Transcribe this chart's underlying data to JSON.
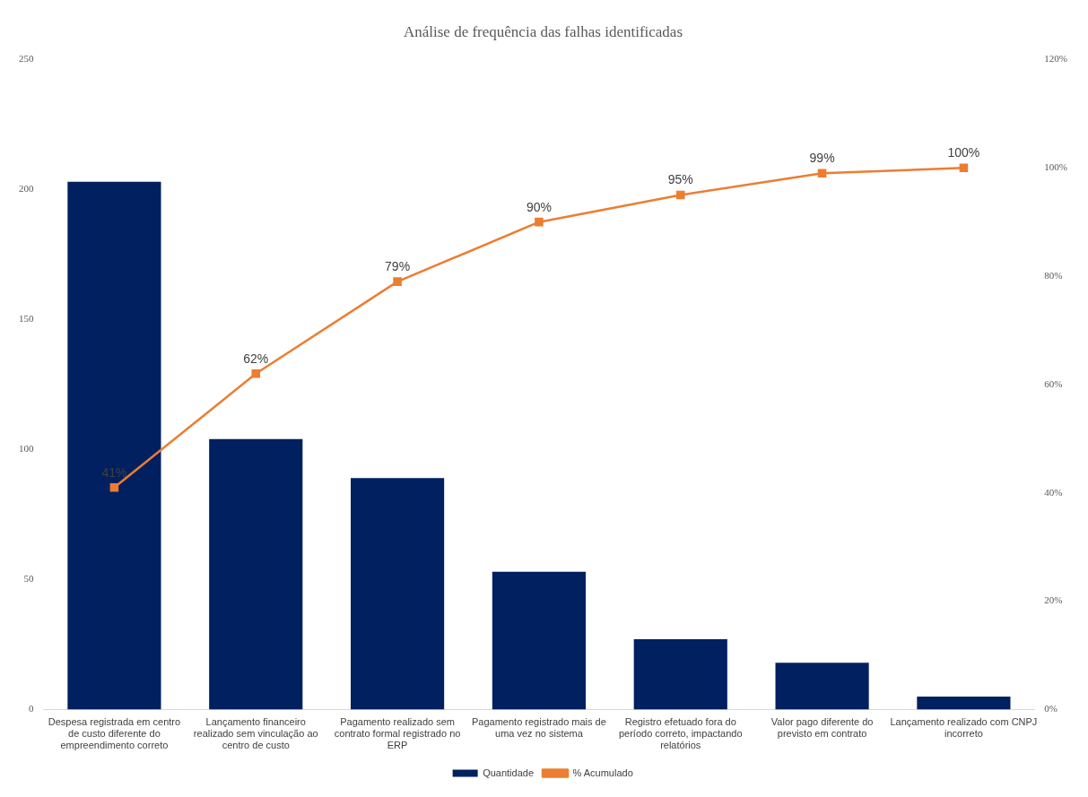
{
  "chart_data": {
    "type": "bar",
    "title": "Análise de frequência das falhas identificadas",
    "categories": [
      "Despesa registrada em centro de custo diferente do empreendimento correto",
      "Lançamento financeiro realizado sem vinculação ao centro de custo",
      "Pagamento realizado sem contrato formal registrado no ERP",
      "Pagamento registrado mais de uma vez no sistema",
      "Registro efetuado fora do período correto, impactando relatórios",
      "Valor pago diferente do previsto em contrato",
      "Lançamento realizado com CNPJ incorreto"
    ],
    "series": [
      {
        "name": "Quantidade",
        "color": "#002060",
        "values": [
          203,
          104,
          89,
          53,
          27,
          18,
          5
        ]
      },
      {
        "name": "% Acumulado",
        "type": "line",
        "axis": "y2",
        "color": "#ed7d31",
        "marker": "square",
        "values": [
          41,
          62,
          79,
          90,
          95,
          99,
          100
        ],
        "value_labels": [
          "41%",
          "62%",
          "79%",
          "90%",
          "95%",
          "99%",
          "100%"
        ]
      }
    ],
    "ylim": [
      0,
      250
    ],
    "yticks": [
      0,
      50,
      100,
      150,
      200,
      250
    ],
    "y2lim": [
      0,
      120
    ],
    "y2ticks": [
      {
        "value": 0,
        "label": "0%"
      },
      {
        "value": 20,
        "label": "20%"
      },
      {
        "value": 40,
        "label": "40%"
      },
      {
        "value": 60,
        "label": "60%"
      },
      {
        "value": 80,
        "label": "80%"
      },
      {
        "value": 100,
        "label": "100%"
      },
      {
        "value": 120,
        "label": "120%"
      }
    ],
    "grid": false,
    "legend": "bottom"
  }
}
